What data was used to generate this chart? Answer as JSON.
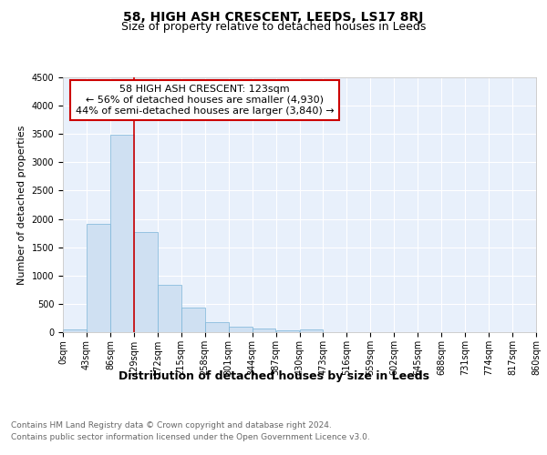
{
  "title": "58, HIGH ASH CRESCENT, LEEDS, LS17 8RJ",
  "subtitle": "Size of property relative to detached houses in Leeds",
  "xlabel": "Distribution of detached houses by size in Leeds",
  "ylabel": "Number of detached properties",
  "bar_color": "#cfe0f2",
  "bar_edge_color": "#7ab4d8",
  "background_color": "#e8f0fb",
  "grid_color": "#ffffff",
  "annotation_title": "58 HIGH ASH CRESCENT: 123sqm",
  "annotation_line1": "← 56% of detached houses are smaller (4,930)",
  "annotation_line2": "44% of semi-detached houses are larger (3,840) →",
  "vline_x": 129,
  "vline_color": "#cc0000",
  "bin_edges": [
    0,
    43,
    86,
    129,
    172,
    215,
    258,
    301,
    344,
    387,
    430,
    473,
    516,
    559,
    602,
    645,
    688,
    731,
    774,
    817,
    860
  ],
  "bar_heights": [
    50,
    1920,
    3490,
    1760,
    840,
    440,
    170,
    100,
    60,
    40,
    55,
    0,
    0,
    0,
    0,
    0,
    0,
    0,
    0,
    0
  ],
  "ylim": [
    0,
    4500
  ],
  "yticks": [
    0,
    500,
    1000,
    1500,
    2000,
    2500,
    3000,
    3500,
    4000,
    4500
  ],
  "xtick_labels": [
    "0sqm",
    "43sqm",
    "86sqm",
    "129sqm",
    "172sqm",
    "215sqm",
    "258sqm",
    "301sqm",
    "344sqm",
    "387sqm",
    "430sqm",
    "473sqm",
    "516sqm",
    "559sqm",
    "602sqm",
    "645sqm",
    "688sqm",
    "731sqm",
    "774sqm",
    "817sqm",
    "860sqm"
  ],
  "footnote1": "Contains HM Land Registry data © Crown copyright and database right 2024.",
  "footnote2": "Contains public sector information licensed under the Open Government Licence v3.0.",
  "title_fontsize": 10,
  "subtitle_fontsize": 9,
  "xlabel_fontsize": 9,
  "ylabel_fontsize": 8,
  "tick_fontsize": 7,
  "annotation_fontsize": 8,
  "footnote_fontsize": 6.5
}
